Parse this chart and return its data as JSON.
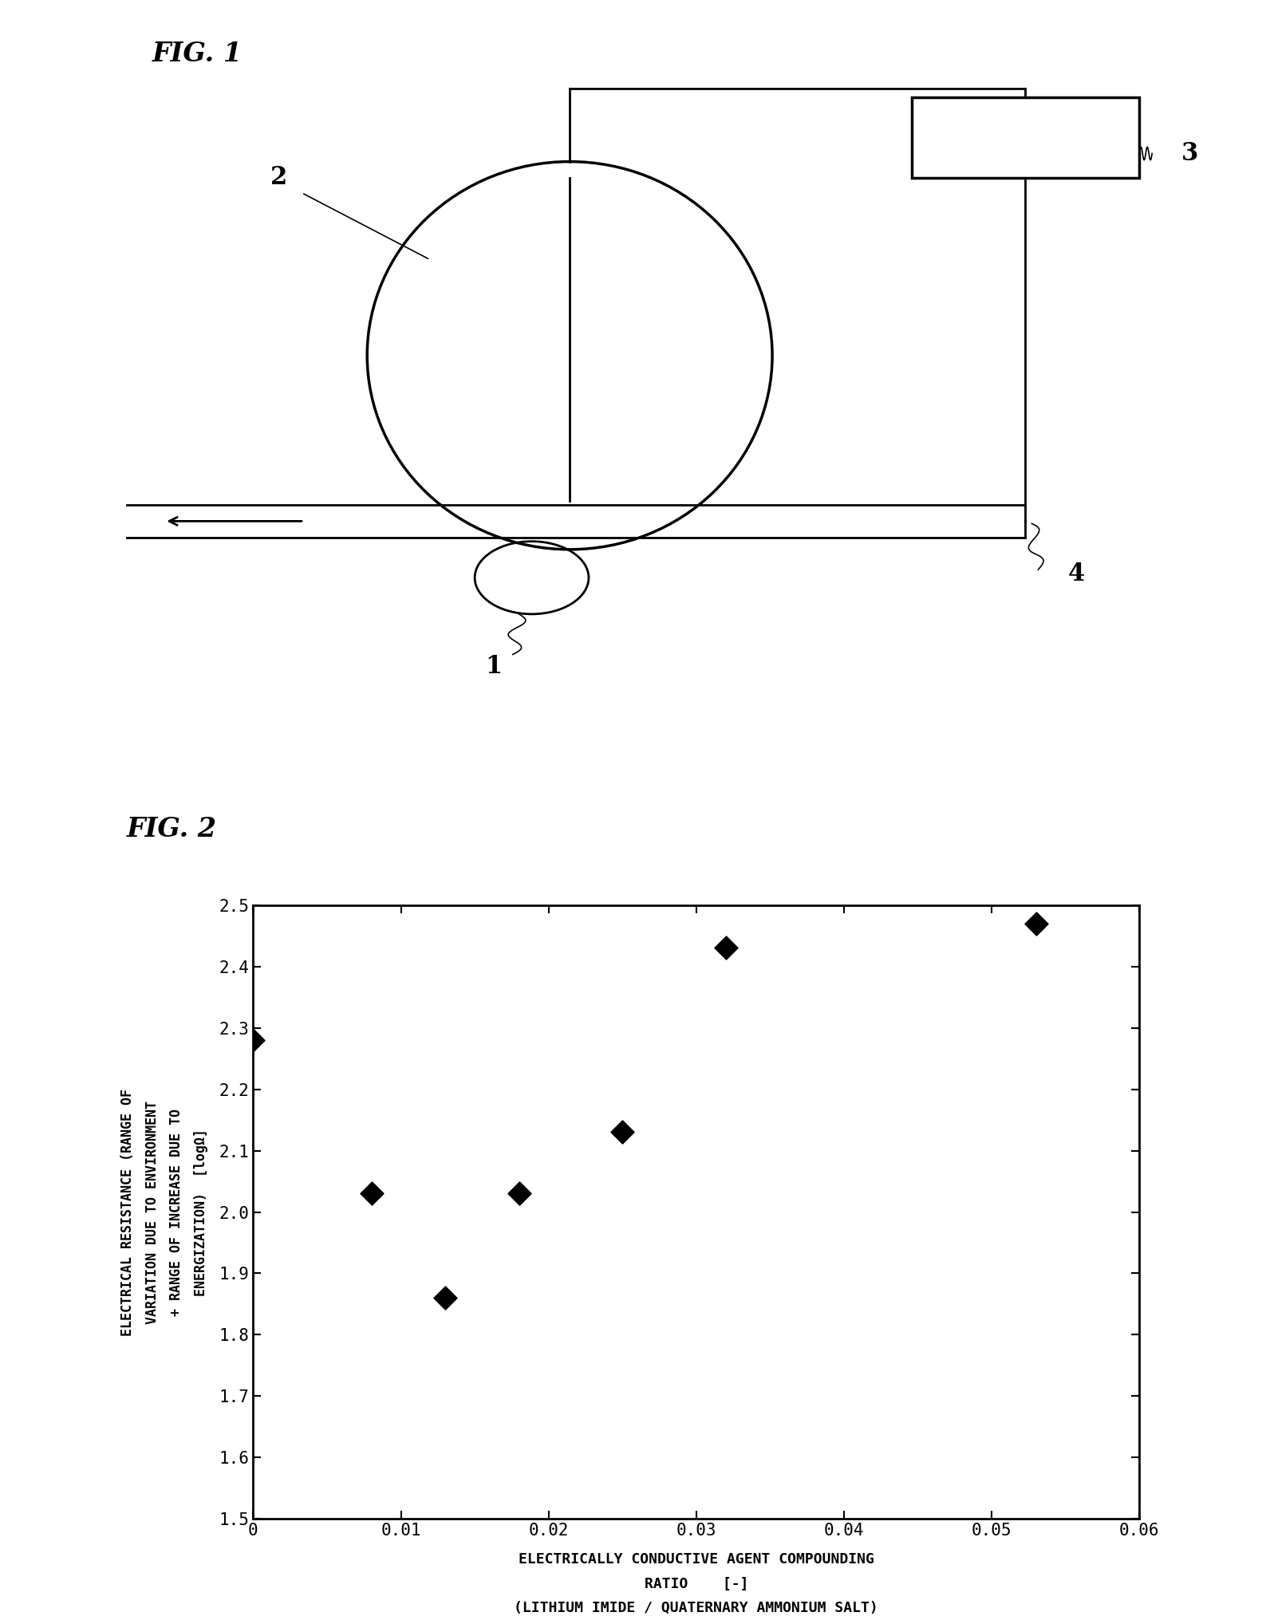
{
  "fig1_label": "FIG. 1",
  "fig2_label": "FIG. 2",
  "scatter_x": [
    0,
    0.008,
    0.013,
    0.018,
    0.025,
    0.032,
    0.053
  ],
  "scatter_y": [
    2.28,
    2.03,
    1.86,
    2.03,
    2.13,
    2.43,
    2.47
  ],
  "xlim": [
    0,
    0.06
  ],
  "ylim": [
    1.5,
    2.5
  ],
  "xticks": [
    0,
    0.01,
    0.02,
    0.03,
    0.04,
    0.05,
    0.06
  ],
  "yticks": [
    1.5,
    1.6,
    1.7,
    1.8,
    1.9,
    2.0,
    2.1,
    2.2,
    2.3,
    2.4,
    2.5
  ],
  "xlabel_line1": "ELECTRICALLY CONDUCTIVE AGENT COMPOUNDING",
  "xlabel_line2": "RATIO    [-]",
  "xlabel_line3": "(LITHIUM IMIDE / QUATERNARY AMMONIUM SALT)",
  "ylabel_line1": "ELECTRICAL RESISTANCE (RANGE OF",
  "ylabel_line2": "VARIATION DUE TO ENVIRONMENT",
  "ylabel_line3": "+ RANGE OF INCREASE DUE TO",
  "ylabel_line4": "ENERGIZATION)  [logΩ]",
  "bg_color": "#ffffff",
  "text_color": "#000000",
  "marker_color": "#000000",
  "lw": 2.0
}
